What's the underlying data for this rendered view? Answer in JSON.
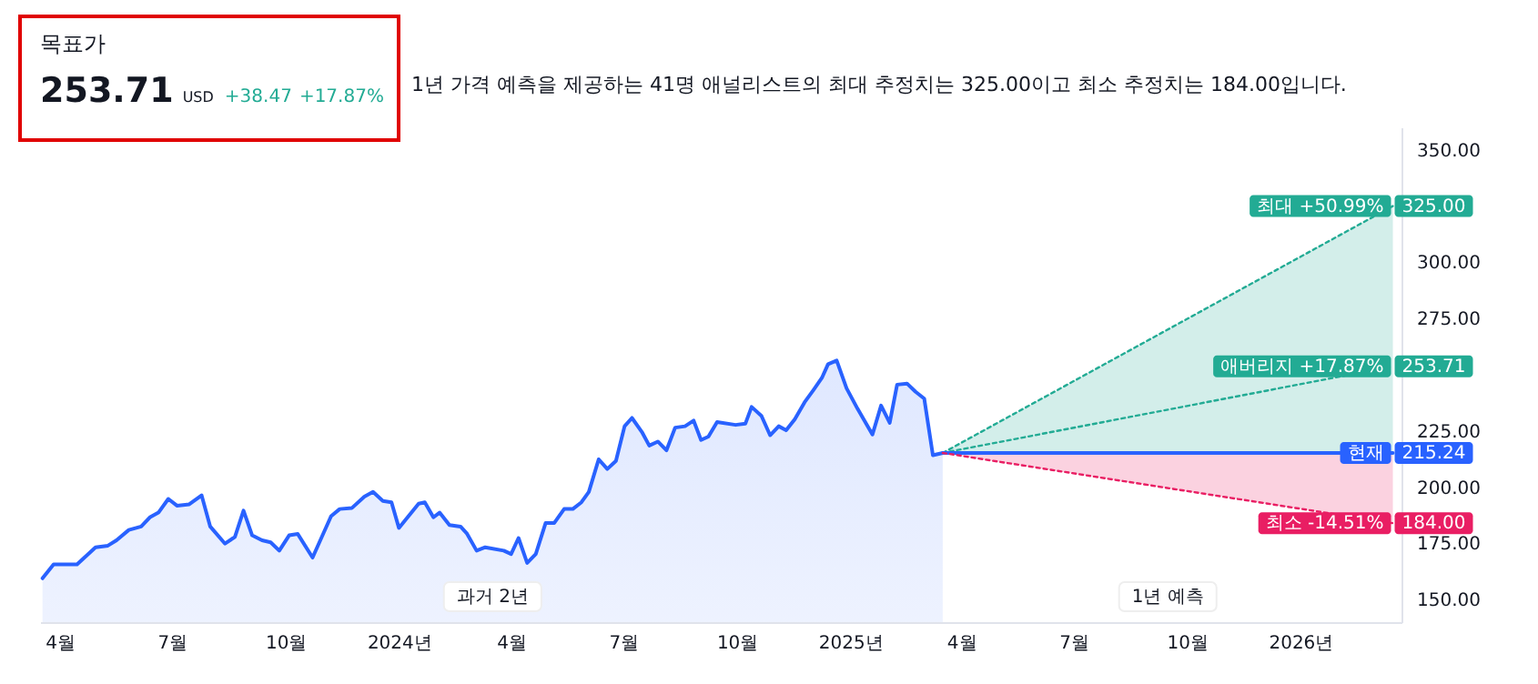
{
  "chart_data": [
    {
      "type": "other",
      "title": "목표가",
      "annotations": [
        "253.71",
        "USD",
        "+38.47",
        "+17.87%"
      ]
    },
    {
      "type": "line",
      "annotations": [
        "1년 가격 예측을 제공하는 41명 애널리스트의 최대 추정치는 325.00이고 최소 추정치는 184.00입니다.",
        "과거 2년",
        "1년 예측"
      ],
      "xlim": [
        "2023-03-16",
        "2026-03-24"
      ],
      "xticks": [
        {
          "value": "2023-04-01",
          "label": "4월"
        },
        {
          "value": "2023-07-01",
          "label": "7월"
        },
        {
          "value": "2023-10-01",
          "label": "10월"
        },
        {
          "value": "2024-01-01",
          "label": "2024년"
        },
        {
          "value": "2024-04-01",
          "label": "4월"
        },
        {
          "value": "2024-07-01",
          "label": "7월"
        },
        {
          "value": "2024-10-01",
          "label": "10월"
        },
        {
          "value": "2025-01-01",
          "label": "2025년"
        },
        {
          "value": "2025-04-01",
          "label": "4월"
        },
        {
          "value": "2025-07-01",
          "label": "7월"
        },
        {
          "value": "2025-10-01",
          "label": "10월"
        },
        {
          "value": "2026-01-01",
          "label": "2026년"
        }
      ],
      "ylim": [
        140,
        360
      ],
      "legend": "right",
      "yticks": [
        {
          "value": 150,
          "label": "150.00"
        },
        {
          "value": 175,
          "label": "175.00"
        },
        {
          "value": 200,
          "label": "200.00"
        },
        {
          "value": 225,
          "label": "225.00"
        },
        {
          "value": 275,
          "label": "275.00"
        },
        {
          "value": 300,
          "label": "300.00"
        },
        {
          "value": 350,
          "label": "350.00"
        }
      ],
      "series": [
        {
          "type": "area",
          "color": "#2962ff",
          "x": [
            "2023-03-18",
            "2023-03-27",
            "2023-04-15",
            "2023-04-30",
            "2023-05-10",
            "2023-05-17",
            "2023-05-27",
            "2023-06-06",
            "2023-06-13",
            "2023-06-20",
            "2023-06-28",
            "2023-07-05",
            "2023-07-15",
            "2023-07-25",
            "2023-08-01",
            "2023-08-13",
            "2023-08-21",
            "2023-08-28",
            "2023-09-04",
            "2023-09-12",
            "2023-09-19",
            "2023-09-26",
            "2023-10-04",
            "2023-10-11",
            "2023-10-23",
            "2023-11-07",
            "2023-11-14",
            "2023-11-24",
            "2023-12-04",
            "2023-12-11",
            "2023-12-19",
            "2023-12-26",
            "2024-01-01",
            "2024-01-17",
            "2024-01-22",
            "2024-01-29",
            "2024-02-03",
            "2024-02-11",
            "2024-02-20",
            "2024-02-25",
            "2024-03-04",
            "2024-03-11",
            "2024-03-26",
            "2024-04-01",
            "2024-04-07",
            "2024-04-14",
            "2024-04-21",
            "2024-04-29",
            "2024-05-06",
            "2024-05-14",
            "2024-05-21",
            "2024-05-28",
            "2024-06-03",
            "2024-06-11",
            "2024-06-18",
            "2024-06-25",
            "2024-07-02",
            "2024-07-08",
            "2024-07-16",
            "2024-07-22",
            "2024-07-29",
            "2024-08-05",
            "2024-08-12",
            "2024-08-20",
            "2024-08-27",
            "2024-09-02",
            "2024-09-08",
            "2024-09-15",
            "2024-09-30",
            "2024-10-08",
            "2024-10-13",
            "2024-10-21",
            "2024-10-28",
            "2024-11-04",
            "2024-11-10",
            "2024-11-17",
            "2024-11-25",
            "2024-12-02",
            "2024-12-09",
            "2024-12-14",
            "2024-12-21",
            "2024-12-29",
            "2025-01-07",
            "2025-01-19",
            "2025-01-26",
            "2025-02-02",
            "2025-02-08",
            "2025-02-16",
            "2025-02-23",
            "2025-03-02",
            "2025-03-09",
            "2025-03-17"
          ],
          "values": [
            159.5,
            165.7,
            165.7,
            173.3,
            174.0,
            176.4,
            181.0,
            182.5,
            186.6,
            188.7,
            194.8,
            191.8,
            192.4,
            196.4,
            182.5,
            174.9,
            177.9,
            189.6,
            178.6,
            176.4,
            175.5,
            171.8,
            178.6,
            179.2,
            168.7,
            187.1,
            190.3,
            190.8,
            195.8,
            197.9,
            193.9,
            193.3,
            181.9,
            192.7,
            193.3,
            186.6,
            188.7,
            183.2,
            182.5,
            179.5,
            171.8,
            173.3,
            171.8,
            170.3,
            177.4,
            166.3,
            170.3,
            184.1,
            184.1,
            190.3,
            190.3,
            193.3,
            197.9,
            212.4,
            208.1,
            211.7,
            227.1,
            230.8,
            224.6,
            218.5,
            220.3,
            216.4,
            226.5,
            227.1,
            229.6,
            221.0,
            222.5,
            229.0,
            227.7,
            228.3,
            235.7,
            231.7,
            223.1,
            227.1,
            225.3,
            230.2,
            237.8,
            243.1,
            248.6,
            254.7,
            256.3,
            244.0,
            234.8,
            223.4,
            236.3,
            228.6,
            245.6,
            246.1,
            242.4,
            239.4,
            214.2,
            215.24
          ]
        },
        {
          "name": "최대 +50.99%",
          "color": "#22ab94",
          "line_style": "dotted",
          "x": [
            "2025-03-17",
            "2026-03-17"
          ],
          "values": [
            215.24,
            325
          ],
          "lower": [
            215.24,
            215.24
          ],
          "upper": [
            215.24,
            325
          ],
          "value_labels": [
            null,
            "325.00"
          ]
        },
        {
          "name": "애버리지 +17.87%",
          "color": "#22ab94",
          "line_style": "dotted",
          "x": [
            "2025-03-17",
            "2026-03-17"
          ],
          "values": [
            215.24,
            253.71
          ],
          "value_labels": [
            null,
            "253.71"
          ]
        },
        {
          "name": "현재",
          "color": "#2962ff",
          "line_style": "solid",
          "x": [
            "2025-03-17",
            "2026-03-17"
          ],
          "values": [
            215.24,
            215.24
          ],
          "value_labels": [
            null,
            "215.24"
          ]
        },
        {
          "name": "최소 -14.51%",
          "color": "#e91e63",
          "line_style": "dotted",
          "x": [
            "2025-03-17",
            "2026-03-17"
          ],
          "values": [
            215.24,
            184
          ],
          "lower": [
            215.24,
            184
          ],
          "upper": [
            215.24,
            215.24
          ],
          "value_labels": [
            null,
            "184.00"
          ]
        }
      ]
    }
  ]
}
